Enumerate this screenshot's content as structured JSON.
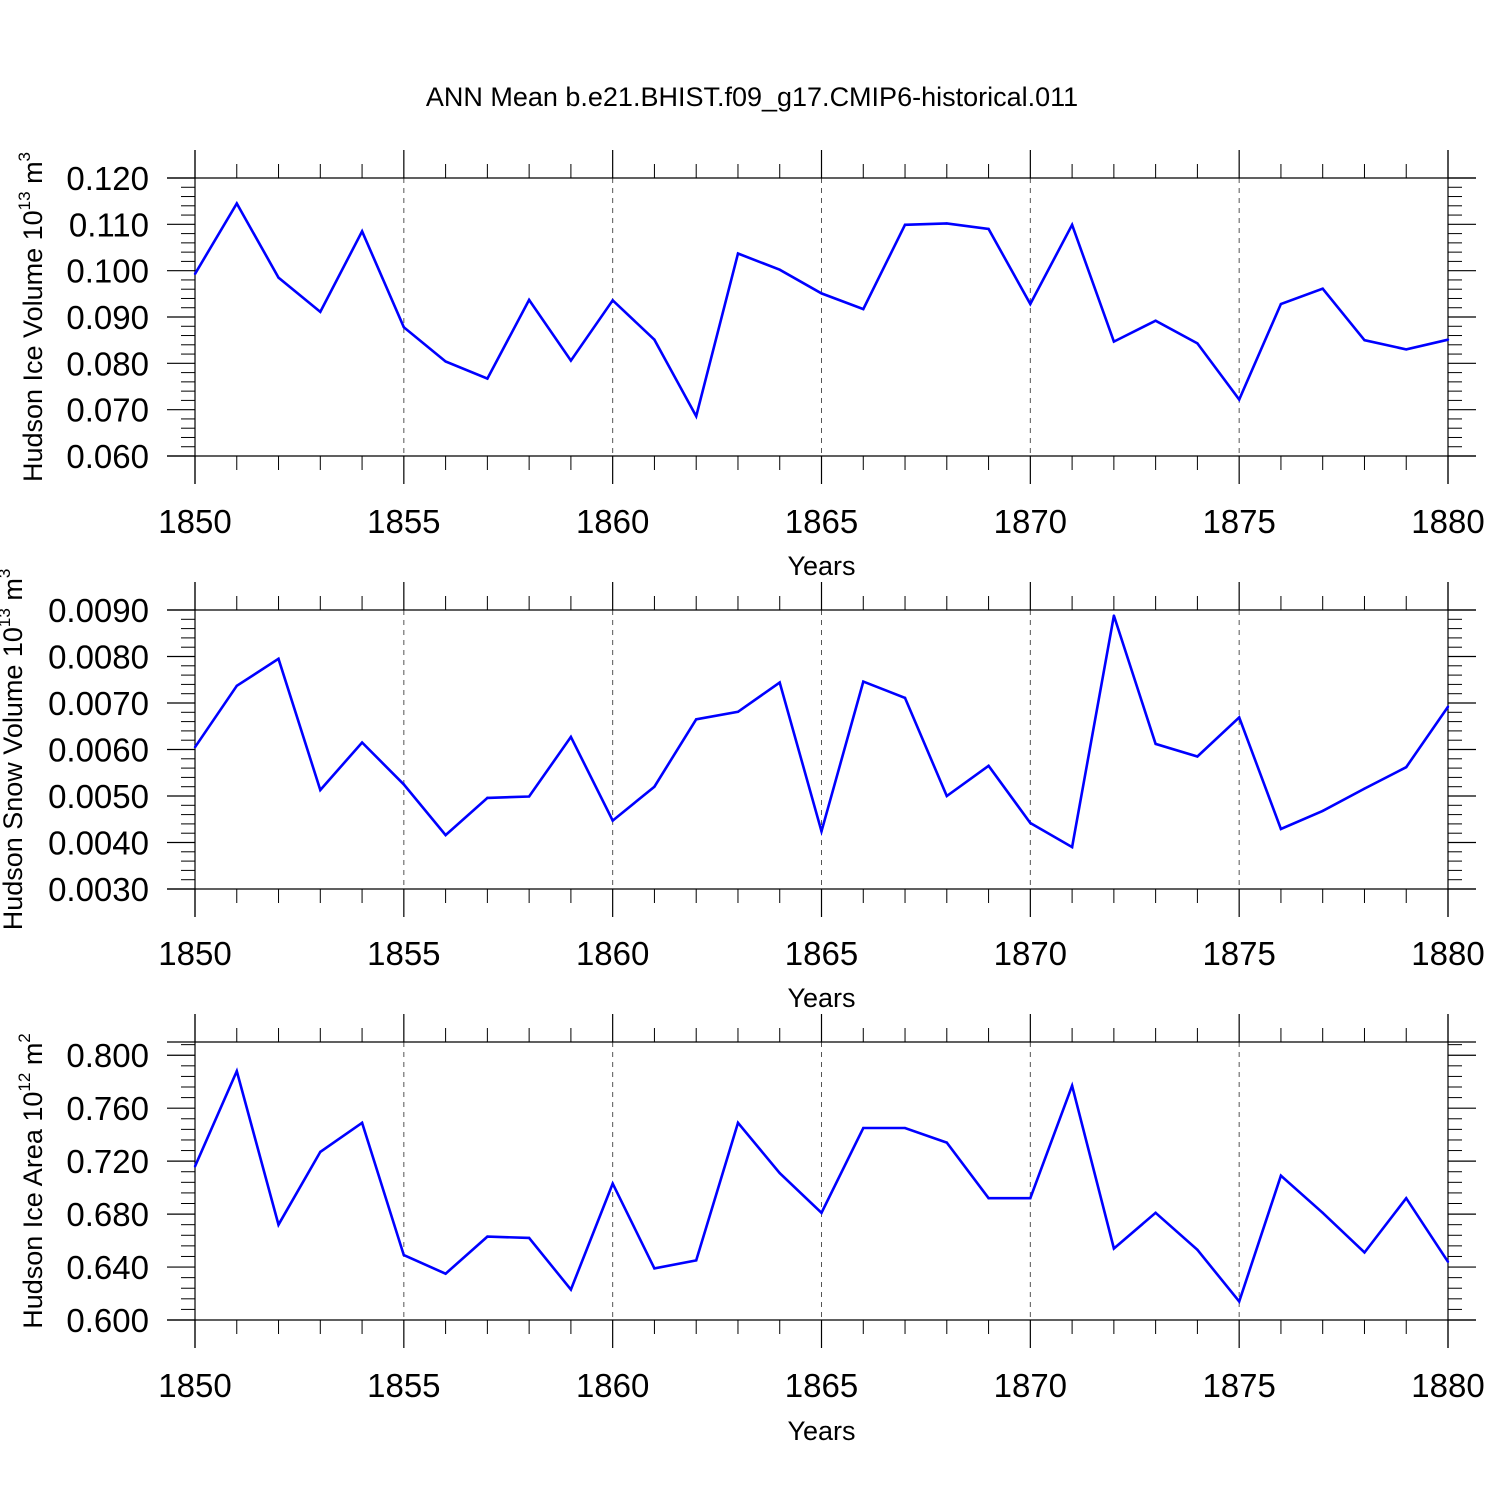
{
  "title": "ANN Mean b.e21.BHIST.f09_g17.CMIP6-historical.011",
  "chart_data": [
    {
      "type": "line",
      "title": "ANN Mean b.e21.BHIST.f09_g17.CMIP6-historical.011",
      "ylabel_main": "Hudson Ice Volume 10",
      "ylabel_exp": "13",
      "ylabel_unit": " m",
      "ylabel_unit_exp": "3",
      "xlabel": "Years",
      "xlim": [
        1850,
        1880
      ],
      "ylim": [
        0.06,
        0.12
      ],
      "yticks": [
        0.06,
        0.07,
        0.08,
        0.09,
        0.1,
        0.11,
        0.12
      ],
      "ytick_labels": [
        "0.060",
        "0.070",
        "0.080",
        "0.090",
        "0.100",
        "0.110",
        "0.120"
      ],
      "xticks": [
        1850,
        1855,
        1860,
        1865,
        1870,
        1875,
        1880
      ],
      "xtick_labels": [
        "1850",
        "1855",
        "1860",
        "1865",
        "1870",
        "1875",
        "1880"
      ],
      "line_color": "#0000ff",
      "x": [
        1850,
        1851,
        1852,
        1853,
        1854,
        1855,
        1856,
        1857,
        1858,
        1859,
        1860,
        1861,
        1862,
        1863,
        1864,
        1865,
        1866,
        1867,
        1868,
        1869,
        1870,
        1871,
        1872,
        1873,
        1874,
        1875,
        1876,
        1877,
        1878,
        1879,
        1880
      ],
      "values": [
        0.0993,
        0.1145,
        0.0985,
        0.0911,
        0.1085,
        0.0878,
        0.0804,
        0.0767,
        0.0937,
        0.0806,
        0.0936,
        0.0851,
        0.0686,
        0.1037,
        0.1002,
        0.0951,
        0.0917,
        0.1099,
        0.1102,
        0.109,
        0.0928,
        0.1099,
        0.0847,
        0.0892,
        0.0843,
        0.0722,
        0.0928,
        0.0961,
        0.085,
        0.083,
        0.0851
      ]
    },
    {
      "type": "line",
      "ylabel_main": "Hudson Snow Volume 10",
      "ylabel_exp": "13",
      "ylabel_unit": " m",
      "ylabel_unit_exp": "3",
      "xlabel": "Years",
      "xlim": [
        1850,
        1880
      ],
      "ylim": [
        0.003,
        0.009
      ],
      "yticks": [
        0.003,
        0.004,
        0.005,
        0.006,
        0.007,
        0.008,
        0.009
      ],
      "ytick_labels": [
        "0.0030",
        "0.0040",
        "0.0050",
        "0.0060",
        "0.0070",
        "0.0080",
        "0.0090"
      ],
      "xticks": [
        1850,
        1855,
        1860,
        1865,
        1870,
        1875,
        1880
      ],
      "xtick_labels": [
        "1850",
        "1855",
        "1860",
        "1865",
        "1870",
        "1875",
        "1880"
      ],
      "line_color": "#0000ff",
      "x": [
        1850,
        1851,
        1852,
        1853,
        1854,
        1855,
        1856,
        1857,
        1858,
        1859,
        1860,
        1861,
        1862,
        1863,
        1864,
        1865,
        1866,
        1867,
        1868,
        1869,
        1870,
        1871,
        1872,
        1873,
        1874,
        1875,
        1876,
        1877,
        1878,
        1879,
        1880
      ],
      "values": [
        0.00605,
        0.00737,
        0.00795,
        0.00513,
        0.00615,
        0.00525,
        0.00416,
        0.00496,
        0.00499,
        0.00627,
        0.00447,
        0.0052,
        0.00665,
        0.00681,
        0.00744,
        0.00424,
        0.00746,
        0.00711,
        0.005,
        0.00565,
        0.00442,
        0.0039,
        0.00888,
        0.00612,
        0.00585,
        0.00669,
        0.00429,
        0.00468,
        0.00516,
        0.00562,
        0.00692
      ]
    },
    {
      "type": "line",
      "ylabel_main": "Hudson Ice Area 10",
      "ylabel_exp": "12",
      "ylabel_unit": " m",
      "ylabel_unit_exp": "2",
      "xlabel": "Years",
      "xlim": [
        1850,
        1880
      ],
      "ylim": [
        0.6,
        0.81
      ],
      "yticks": [
        0.6,
        0.64,
        0.68,
        0.72,
        0.76,
        0.8
      ],
      "ytick_labels": [
        "0.600",
        "0.640",
        "0.680",
        "0.720",
        "0.760",
        "0.800"
      ],
      "xticks": [
        1850,
        1855,
        1860,
        1865,
        1870,
        1875,
        1880
      ],
      "xtick_labels": [
        "1850",
        "1855",
        "1860",
        "1865",
        "1870",
        "1875",
        "1880"
      ],
      "line_color": "#0000ff",
      "x": [
        1850,
        1851,
        1852,
        1853,
        1854,
        1855,
        1856,
        1857,
        1858,
        1859,
        1860,
        1861,
        1862,
        1863,
        1864,
        1865,
        1866,
        1867,
        1868,
        1869,
        1870,
        1871,
        1872,
        1873,
        1874,
        1875,
        1876,
        1877,
        1878,
        1879,
        1880
      ],
      "values": [
        0.716,
        0.788,
        0.672,
        0.727,
        0.749,
        0.649,
        0.635,
        0.663,
        0.662,
        0.623,
        0.703,
        0.639,
        0.645,
        0.749,
        0.711,
        0.681,
        0.745,
        0.745,
        0.734,
        0.692,
        0.692,
        0.777,
        0.654,
        0.681,
        0.653,
        0.614,
        0.709,
        0.681,
        0.651,
        0.692,
        0.644
      ]
    }
  ]
}
